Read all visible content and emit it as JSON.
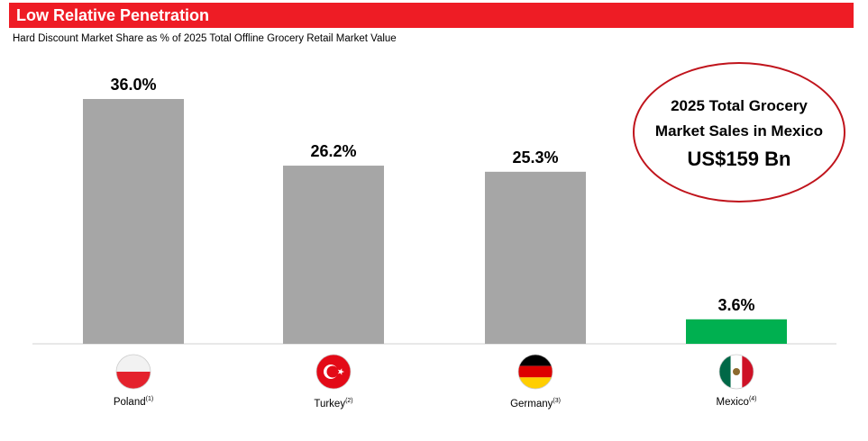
{
  "header": {
    "title": "Low Relative Penetration"
  },
  "subtitle": "Hard Discount Market Share as % of 2025 Total Offline Grocery Retail Market Value",
  "callout": {
    "line1": "2025 Total Grocery",
    "line2": "Market Sales in Mexico",
    "amount": "US$159 Bn"
  },
  "colors": {
    "header": "#ee1c25",
    "bar_default": "#a6a6a6",
    "bar_highlight": "#00b050",
    "callout_border": "#c0141c"
  },
  "chart_data": {
    "type": "bar",
    "categories": [
      "Poland",
      "Turkey",
      "Germany",
      "Mexico"
    ],
    "footnotes": [
      "(1)",
      "(2)",
      "(3)",
      "(4)"
    ],
    "values": [
      36.0,
      26.2,
      25.3,
      3.6
    ],
    "data_labels": [
      "36.0%",
      "26.2%",
      "25.3%",
      "3.6%"
    ],
    "highlight_index": 3,
    "ylim": [
      0,
      36.0
    ],
    "flags": [
      "poland-flag-icon",
      "turkey-flag-icon",
      "germany-flag-icon",
      "mexico-flag-icon"
    ]
  }
}
